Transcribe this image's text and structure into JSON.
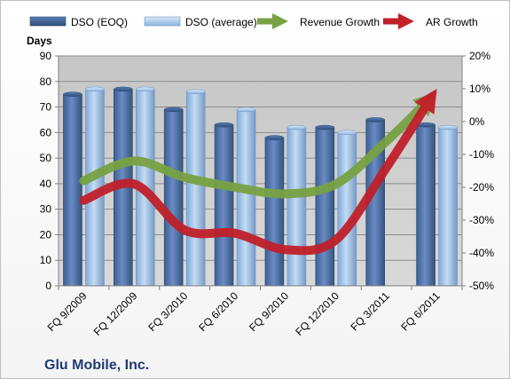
{
  "chart_data": {
    "type": "bar",
    "title": "Glu Mobile, Inc.",
    "ylabel_left": "Days",
    "categories": [
      "FQ 9/2009",
      "FQ 12/2009",
      "FQ 3/2010",
      "FQ 6/2010",
      "FQ 9/2010",
      "FQ 12/2010",
      "FQ 3/2011",
      "FQ 6/2011"
    ],
    "y_left": {
      "lim": [
        0,
        90
      ],
      "ticks": [
        "0",
        "10",
        "20",
        "30",
        "40",
        "50",
        "60",
        "70",
        "80",
        "90"
      ]
    },
    "y_right": {
      "lim": [
        -50,
        20
      ],
      "ticks": [
        "-50%",
        "-40%",
        "-30%",
        "-20%",
        "-10%",
        "0%",
        "10%",
        "20%"
      ]
    },
    "grid": true,
    "legend_position": "top",
    "series": [
      {
        "name": "DSO (EOQ)",
        "type": "bar",
        "axis": "left",
        "color": "#4a6fa5",
        "values": [
          75,
          77,
          69,
          63,
          58,
          62,
          65,
          63
        ]
      },
      {
        "name": "DSO (average)",
        "type": "bar",
        "axis": "left",
        "color": "#9dc3e6",
        "values": [
          77,
          77,
          76,
          69,
          62,
          60,
          null,
          62
        ]
      },
      {
        "name": "Revenue Growth",
        "type": "line",
        "axis": "right",
        "color": "#77a243",
        "values": [
          -18,
          -12,
          -17,
          -20,
          -22,
          -19,
          -6,
          9
        ]
      },
      {
        "name": "AR Growth",
        "type": "line",
        "axis": "right",
        "color": "#c0202a",
        "values": [
          -24,
          -19,
          -33,
          -34,
          -39,
          -36,
          -14,
          10
        ]
      }
    ]
  }
}
